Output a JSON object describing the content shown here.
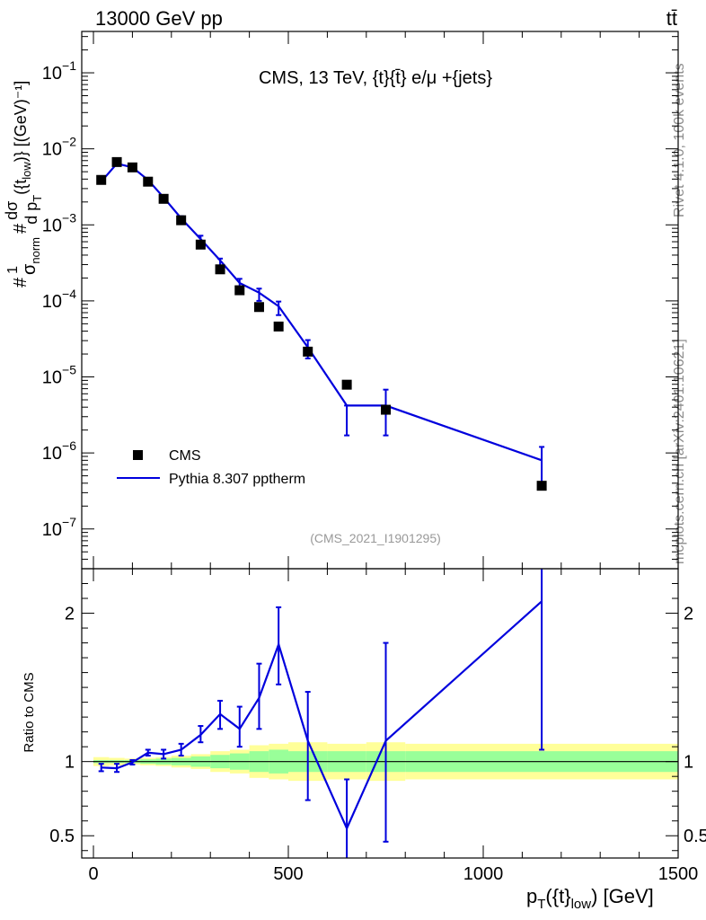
{
  "header": {
    "beam_label": "13000 GeV pp",
    "process_label": "tt̄"
  },
  "side_labels": {
    "rivet": "Rivet 4.1.0,  100k events",
    "mcplots": "mcplots.cern.ch [arXiv:2401.10621]"
  },
  "chart_data": [
    {
      "type": "scatter",
      "title": "CMS, 13 TeV, {t}{t̄} e/μ +{jets}",
      "analysis_tag": "(CMS_2021_I1901295)",
      "ylabel_parts": {
        "hash1": "#",
        "one": "1",
        "sigma": "σ",
        "norm": "norm",
        "hash2": "#",
        "dsigma": "dσ",
        "dpt": "d p",
        "T": "T",
        "tail": "({t",
        "low": "low",
        "close": ")} [(GeV)⁻¹]"
      },
      "yscale": "log",
      "ylim": [
        3e-08,
        0.35
      ],
      "xlim": [
        -30,
        1500
      ],
      "y_ticks": [
        {
          "value": 1e-07,
          "base": "10",
          "exp": "−7"
        },
        {
          "value": 1e-06,
          "base": "10",
          "exp": "−6"
        },
        {
          "value": 1e-05,
          "base": "10",
          "exp": "−5"
        },
        {
          "value": 0.0001,
          "base": "10",
          "exp": "−4"
        },
        {
          "value": 0.001,
          "base": "10",
          "exp": "−3"
        },
        {
          "value": 0.01,
          "base": "10",
          "exp": "−2"
        },
        {
          "value": 0.1,
          "base": "10",
          "exp": "−1"
        }
      ],
      "legend": [
        {
          "name": "CMS",
          "style": "marker"
        },
        {
          "name": "Pythia 8.307 pptherm",
          "style": "line",
          "color": "#0000dd"
        }
      ],
      "bin_edges": [
        0,
        40,
        80,
        120,
        160,
        200,
        250,
        300,
        350,
        400,
        450,
        500,
        600,
        700,
        800,
        1500
      ],
      "data_x": [
        20,
        60,
        100,
        140,
        180,
        225,
        275,
        325,
        375,
        425,
        475,
        550,
        650,
        750,
        1150
      ],
      "cms_values": [
        0.0039,
        0.0067,
        0.0057,
        0.0037,
        0.0022,
        0.00115,
        0.00055,
        0.00026,
        0.000138,
        8.3e-05,
        4.6e-05,
        2.15e-05,
        7.9e-06,
        3.7e-06,
        3.7e-07
      ],
      "mc_values": [
        0.0037,
        0.0064,
        0.0057,
        0.0039,
        0.0023,
        0.00122,
        0.00065,
        0.00034,
        0.000172,
        0.000128,
        8.5e-05,
        2.45e-05,
        4.2e-06,
        4.2e-06,
        8e-07
      ],
      "mc_err_low": [
        0.00355,
        0.0061,
        0.0054,
        0.0037,
        0.00215,
        0.00112,
        0.00055,
        0.00027,
        0.000135,
        0.0001,
        6.5e-05,
        1.75e-05,
        1.7e-06,
        1.7e-06,
        3.5e-07
      ],
      "mc_err_high": [
        0.0039,
        0.0067,
        0.006,
        0.0041,
        0.00245,
        0.0013,
        0.00072,
        0.00036,
        0.000195,
        0.000145,
        9.8e-05,
        3.05e-05,
        4.2e-06,
        6.8e-06,
        1.2e-06
      ],
      "line_color": "#0000dd"
    },
    {
      "type": "line",
      "ylabel": "Ratio to CMS",
      "xlabel_parts": {
        "p": "p",
        "T": "T",
        "mid": "({t}",
        "low": "low",
        "unit": ") [GeV]"
      },
      "ylim": [
        0.35,
        2.3
      ],
      "y_ticks": [
        {
          "value": 0.5,
          "label": "0.5"
        },
        {
          "value": 1,
          "label": "1"
        },
        {
          "value": 2,
          "label": "2"
        }
      ],
      "x_ticks": [
        {
          "value": 0,
          "label": "0"
        },
        {
          "value": 500,
          "label": "500"
        },
        {
          "value": 1000,
          "label": "1000"
        },
        {
          "value": 1500,
          "label": "1500"
        }
      ],
      "ratio_values": [
        0.96,
        0.955,
        0.995,
        1.06,
        1.05,
        1.08,
        1.18,
        1.32,
        1.22,
        1.43,
        1.79,
        1.14,
        0.55,
        1.14,
        2.08
      ],
      "ratio_err_low": [
        0.935,
        0.93,
        0.98,
        1.04,
        1.02,
        1.04,
        1.13,
        1.22,
        1.1,
        1.22,
        1.52,
        0.74,
        0.35,
        0.46,
        1.08
      ],
      "ratio_err_high": [
        0.985,
        0.985,
        1.01,
        1.08,
        1.08,
        1.12,
        1.24,
        1.41,
        1.37,
        1.66,
        2.04,
        1.47,
        0.88,
        1.8,
        2.4
      ],
      "band_inner": [
        [
          0.99,
          1.01
        ],
        [
          0.99,
          1.01
        ],
        [
          0.99,
          1.01
        ],
        [
          0.985,
          1.015
        ],
        [
          0.98,
          1.02
        ],
        [
          0.975,
          1.025
        ],
        [
          0.965,
          1.035
        ],
        [
          0.955,
          1.045
        ],
        [
          0.945,
          1.055
        ],
        [
          0.93,
          1.07
        ],
        [
          0.92,
          1.08
        ],
        [
          0.93,
          1.07
        ],
        [
          0.93,
          1.07
        ],
        [
          0.93,
          1.07
        ],
        [
          0.93,
          1.07
        ]
      ],
      "band_outer": [
        [
          0.97,
          1.03
        ],
        [
          0.975,
          1.025
        ],
        [
          0.98,
          1.02
        ],
        [
          0.975,
          1.025
        ],
        [
          0.97,
          1.03
        ],
        [
          0.96,
          1.04
        ],
        [
          0.95,
          1.05
        ],
        [
          0.93,
          1.07
        ],
        [
          0.92,
          1.08
        ],
        [
          0.89,
          1.11
        ],
        [
          0.88,
          1.12
        ],
        [
          0.87,
          1.13
        ],
        [
          0.88,
          1.12
        ],
        [
          0.87,
          1.13
        ],
        [
          0.88,
          1.12
        ]
      ],
      "band_inner_color": "#99ff99",
      "band_outer_color": "#ffff99",
      "line_color": "#0000dd"
    }
  ]
}
